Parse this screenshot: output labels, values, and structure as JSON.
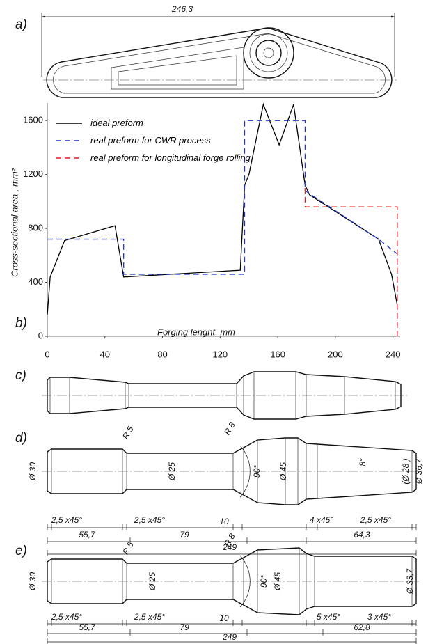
{
  "chart_data": {
    "type": "line",
    "xlabel": "Forging lenght, mm",
    "ylabel": "Cross-sectional area , mm²",
    "xlim": [
      0,
      245
    ],
    "ylim": [
      0,
      1730
    ],
    "xticks": [
      0,
      40,
      80,
      120,
      160,
      200,
      240
    ],
    "yticks": [
      0,
      400,
      800,
      1200,
      1600
    ],
    "grid": false,
    "legend": "upper left",
    "series": [
      {
        "name": "ideal preform",
        "color": "#000000",
        "linestyle": "solid",
        "x": [
          0,
          2,
          12,
          47,
          53,
          134,
          137,
          140,
          150,
          161,
          171,
          179,
          182,
          230,
          239,
          243
        ],
        "values": [
          160,
          440,
          710,
          820,
          440,
          490,
          1120,
          1200,
          1720,
          1420,
          1720,
          1120,
          1050,
          720,
          460,
          230
        ]
      },
      {
        "name": "real preform for CWR process",
        "color": "#2233cc",
        "linestyle": "dashed",
        "x": [
          0,
          53,
          53,
          137,
          137,
          179,
          179,
          230,
          243,
          243
        ],
        "values": [
          720,
          720,
          460,
          460,
          1600,
          1600,
          1080,
          720,
          610,
          0
        ]
      },
      {
        "name": "real preform for longitudinal forge rolling",
        "color": "#dd2222",
        "linestyle": "dashed",
        "x": [
          179,
          179,
          243,
          243
        ],
        "values": [
          1100,
          960,
          960,
          0
        ]
      }
    ]
  },
  "panels": {
    "a": {
      "label": "a)",
      "dimension": "246,3"
    },
    "b": {
      "label": "b)"
    },
    "c": {
      "label": "c)"
    },
    "d": {
      "label": "d)",
      "labels": [
        "R 5",
        "R 8",
        "Ø 30",
        "Ø 25",
        "90°",
        "Ø 45",
        "8°",
        "(Ø 28 )",
        "Ø 36,7",
        "2,5 x45°",
        "2,5 x45°",
        "10",
        "4 x45°",
        "2,5 x45°",
        "55,7",
        "79",
        "64,3",
        "249"
      ]
    },
    "e": {
      "label": "e)",
      "labels": [
        "R 5",
        "R 8",
        "Ø 30",
        "Ø 25",
        "90°",
        "Ø 45",
        "Ø 33,7",
        "2,5 x45°",
        "2,5 x45°",
        "10",
        "5 x45°",
        "3 x45°",
        "55,7",
        "79",
        "62,8",
        "249"
      ]
    }
  }
}
